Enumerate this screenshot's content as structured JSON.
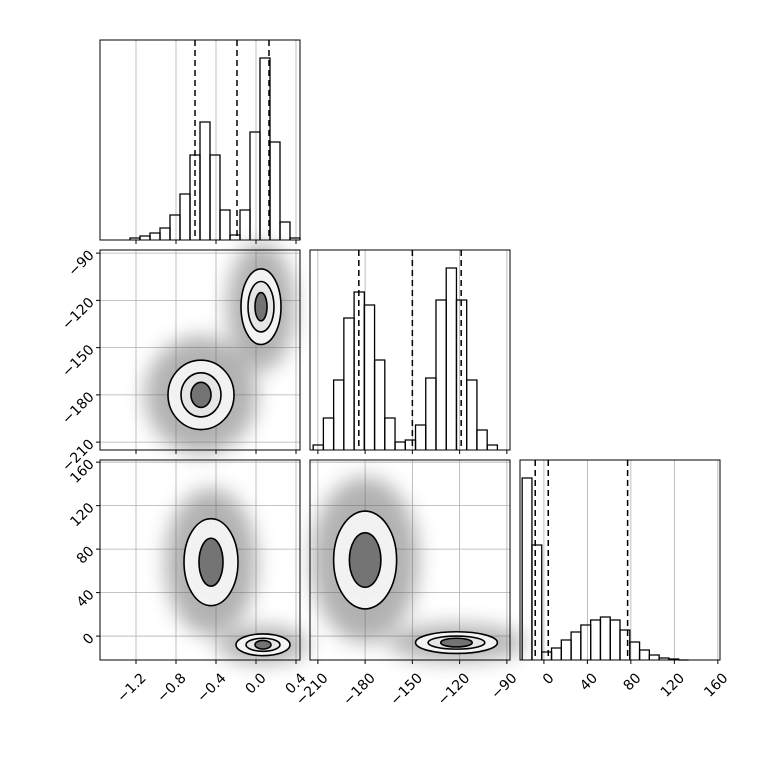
{
  "chart_data": {
    "type": "corner",
    "parameters": [
      {
        "lim": [
          -1.56,
          0.44
        ],
        "ticks": [
          {
            "value": -1.2,
            "label": "−1.2"
          },
          {
            "value": -0.8,
            "label": "−0.8"
          },
          {
            "value": -0.4,
            "label": "−0.4"
          },
          {
            "value": 0,
            "label": "0.0"
          },
          0.4
        ]
      },
      {
        "lim": [
          -215,
          -88
        ],
        "ticks": [
          {
            "value": -210,
            "label": "−210"
          },
          {
            "value": -180,
            "label": "−180"
          },
          {
            "value": -150,
            "label": "−150"
          },
          {
            "value": -120,
            "label": "−120"
          },
          {
            "value": -90,
            "label": "−90"
          }
        ]
      },
      {
        "lim": [
          -22,
          162
        ],
        "ticks": [
          0,
          40,
          80,
          120,
          160
        ]
      }
    ],
    "histograms": [
      {
        "ylim": [
          0,
          200
        ],
        "bins": [
          -1.26,
          -1.16,
          -1.06,
          -0.96,
          -0.86,
          -0.76,
          -0.66,
          -0.56,
          -0.46,
          -0.36,
          -0.26,
          -0.16,
          -0.06,
          0.04,
          0.14,
          0.24,
          0.34,
          0.44
        ],
        "values": [
          2,
          4,
          7,
          12,
          25,
          46,
          85,
          118,
          85,
          30,
          5,
          30,
          108,
          182,
          98,
          18,
          2
        ],
        "quantiles": [
          -0.61,
          -0.19,
          0.13
        ]
      },
      {
        "ylim": [
          0,
          200
        ],
        "bins": [
          -213,
          -206.5,
          -200,
          -193.5,
          -187,
          -180.5,
          -174,
          -167.5,
          -161,
          -154.5,
          -148,
          -141.5,
          -135,
          -128.5,
          -122,
          -115.5,
          -109,
          -102.5,
          -96
        ],
        "values": [
          5,
          32,
          70,
          132,
          158,
          145,
          90,
          32,
          8,
          10,
          25,
          72,
          150,
          182,
          150,
          70,
          20,
          5
        ],
        "quantiles": [
          -184,
          -150,
          -119
        ]
      },
      {
        "ylim": [
          0,
          200
        ],
        "bins": [
          -20,
          -11,
          -2,
          7,
          16,
          25,
          34,
          43,
          52,
          61,
          70,
          79,
          88,
          97,
          106,
          115,
          124,
          133
        ],
        "values": [
          182,
          115,
          8,
          12,
          20,
          28,
          35,
          40,
          43,
          40,
          30,
          18,
          10,
          5,
          2,
          1,
          0
        ],
        "quantiles": [
          -8,
          4,
          77
        ]
      }
    ],
    "pairs": [
      {
        "contours": [
          [
            -0.55,
            -180,
            0.33,
            22
          ],
          [
            -0.55,
            -180,
            0.2,
            14
          ],
          [
            -0.55,
            -180,
            0.1,
            8
          ],
          [
            0.05,
            -124,
            0.2,
            24
          ],
          [
            0.05,
            -124,
            0.13,
            16
          ],
          [
            0.05,
            -124,
            0.06,
            9
          ]
        ]
      },
      {
        "contours": [
          [
            -0.45,
            68,
            0.27,
            40
          ],
          [
            -0.45,
            68,
            0.12,
            22
          ],
          [
            0.07,
            -8,
            0.27,
            10
          ],
          [
            0.07,
            -8,
            0.17,
            6
          ],
          [
            0.07,
            -8,
            0.08,
            4
          ]
        ]
      },
      {
        "contours": [
          [
            -180,
            70,
            20,
            45
          ],
          [
            -180,
            70,
            10,
            25
          ],
          [
            -122,
            -6,
            26,
            10
          ],
          [
            -122,
            -6,
            18,
            6
          ],
          [
            -122,
            -6,
            10,
            4
          ]
        ]
      }
    ]
  }
}
